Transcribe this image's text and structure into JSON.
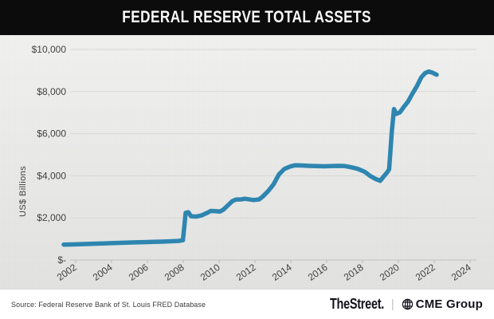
{
  "title": "FEDERAL RESERVE TOTAL ASSETS",
  "footer": {
    "source": "Source: Federal Reserve Bank of St. Louis FRED Database",
    "brand_left": "TheStreet.",
    "separator": "|",
    "brand_right": "CME Group"
  },
  "chart_data": {
    "type": "line",
    "title": "FEDERAL RESERVE TOTAL ASSETS",
    "xlabel": "",
    "ylabel": "US$ Billions",
    "xlim": [
      2002,
      2024
    ],
    "ylim": [
      0,
      10000
    ],
    "grid": "horizontal",
    "legend": "none",
    "line_color": "#2e86b0",
    "x_ticks": [
      {
        "label": "2002",
        "year": 2002
      },
      {
        "label": "2004",
        "year": 2004
      },
      {
        "label": "2006",
        "year": 2006
      },
      {
        "label": "2008",
        "year": 2008
      },
      {
        "label": "2010",
        "year": 2010
      },
      {
        "label": "2012",
        "year": 2012
      },
      {
        "label": "2014",
        "year": 2014
      },
      {
        "label": "2016",
        "year": 2016
      },
      {
        "label": "2018",
        "year": 2018
      },
      {
        "label": "2020",
        "year": 2020
      },
      {
        "label": "2022",
        "year": 2022
      },
      {
        "label": "2024",
        "year": 2024
      }
    ],
    "y_ticks": [
      {
        "label": "$-",
        "value": 0
      },
      {
        "label": "$2,000",
        "value": 2000
      },
      {
        "label": "$4,000",
        "value": 4000
      },
      {
        "label": "$6,000",
        "value": 6000
      },
      {
        "label": "$8,000",
        "value": 8000
      },
      {
        "label": "$10,000",
        "value": 10000
      }
    ],
    "series": [
      {
        "name": "Federal Reserve Total Assets (US$ Billions)",
        "points": [
          [
            2002.0,
            730
          ],
          [
            2002.5,
            738
          ],
          [
            2003.0,
            755
          ],
          [
            2003.5,
            768
          ],
          [
            2004.0,
            780
          ],
          [
            2004.5,
            795
          ],
          [
            2005.0,
            810
          ],
          [
            2005.5,
            825
          ],
          [
            2006.0,
            838
          ],
          [
            2006.5,
            850
          ],
          [
            2007.0,
            860
          ],
          [
            2007.5,
            870
          ],
          [
            2008.0,
            890
          ],
          [
            2008.4,
            905
          ],
          [
            2008.65,
            940
          ],
          [
            2008.8,
            2240
          ],
          [
            2008.95,
            2270
          ],
          [
            2009.1,
            2080
          ],
          [
            2009.4,
            2060
          ],
          [
            2009.7,
            2120
          ],
          [
            2010.0,
            2240
          ],
          [
            2010.2,
            2330
          ],
          [
            2010.45,
            2320
          ],
          [
            2010.7,
            2300
          ],
          [
            2010.9,
            2390
          ],
          [
            2011.1,
            2550
          ],
          [
            2011.4,
            2790
          ],
          [
            2011.6,
            2870
          ],
          [
            2011.9,
            2880
          ],
          [
            2012.1,
            2910
          ],
          [
            2012.4,
            2870
          ],
          [
            2012.6,
            2850
          ],
          [
            2012.9,
            2880
          ],
          [
            2013.1,
            3010
          ],
          [
            2013.4,
            3270
          ],
          [
            2013.7,
            3590
          ],
          [
            2014.0,
            4060
          ],
          [
            2014.3,
            4320
          ],
          [
            2014.6,
            4430
          ],
          [
            2014.9,
            4500
          ],
          [
            2015.3,
            4490
          ],
          [
            2015.7,
            4470
          ],
          [
            2016.1,
            4460
          ],
          [
            2016.5,
            4450
          ],
          [
            2016.9,
            4460
          ],
          [
            2017.3,
            4470
          ],
          [
            2017.7,
            4460
          ],
          [
            2018.0,
            4410
          ],
          [
            2018.4,
            4330
          ],
          [
            2018.8,
            4180
          ],
          [
            2019.1,
            3990
          ],
          [
            2019.4,
            3850
          ],
          [
            2019.65,
            3760
          ],
          [
            2019.85,
            3970
          ],
          [
            2020.05,
            4170
          ],
          [
            2020.15,
            4310
          ],
          [
            2020.3,
            6080
          ],
          [
            2020.42,
            7170
          ],
          [
            2020.55,
            6940
          ],
          [
            2020.75,
            7010
          ],
          [
            2020.95,
            7250
          ],
          [
            2021.2,
            7520
          ],
          [
            2021.45,
            7900
          ],
          [
            2021.7,
            8260
          ],
          [
            2021.95,
            8680
          ],
          [
            2022.15,
            8870
          ],
          [
            2022.35,
            8950
          ],
          [
            2022.55,
            8900
          ],
          [
            2022.8,
            8800
          ]
        ]
      }
    ]
  }
}
